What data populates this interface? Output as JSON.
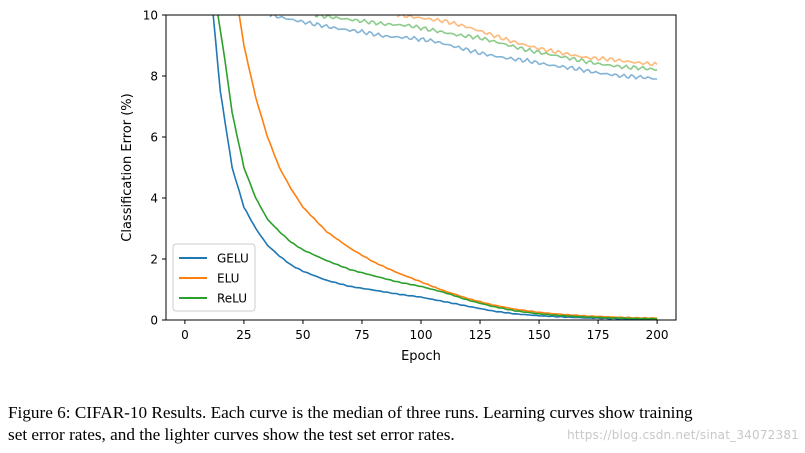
{
  "chart_data": {
    "type": "line",
    "title": "",
    "xlabel": "Epoch",
    "ylabel": "Classification Error (%)",
    "xlim": [
      -8,
      208
    ],
    "ylim": [
      0,
      10
    ],
    "xticks": [
      0,
      25,
      50,
      75,
      100,
      125,
      150,
      175,
      200
    ],
    "yticks": [
      0,
      2,
      4,
      6,
      8,
      10
    ],
    "legend_position": "lower-left",
    "colors": {
      "GELU": "#1f77b4",
      "ELU": "#ff7f0e",
      "ReLU": "#2ca02c"
    },
    "train_series": [
      {
        "name": "GELU",
        "x": [
          12,
          15,
          20,
          25,
          30,
          35,
          40,
          45,
          50,
          60,
          70,
          80,
          90,
          100,
          110,
          120,
          130,
          140,
          150,
          160,
          170,
          180,
          190,
          200
        ],
        "values": [
          10,
          7.5,
          5.0,
          3.7,
          3.0,
          2.45,
          2.1,
          1.8,
          1.6,
          1.3,
          1.1,
          0.98,
          0.85,
          0.75,
          0.6,
          0.45,
          0.3,
          0.2,
          0.14,
          0.1,
          0.07,
          0.05,
          0.04,
          0.03
        ]
      },
      {
        "name": "ELU",
        "x": [
          23,
          25,
          30,
          35,
          40,
          45,
          50,
          55,
          60,
          70,
          80,
          90,
          100,
          110,
          120,
          130,
          140,
          150,
          160,
          170,
          180,
          190,
          200
        ],
        "values": [
          10,
          9.0,
          7.3,
          6.0,
          5.0,
          4.3,
          3.7,
          3.3,
          2.9,
          2.35,
          1.9,
          1.55,
          1.25,
          0.95,
          0.7,
          0.5,
          0.35,
          0.25,
          0.18,
          0.13,
          0.1,
          0.07,
          0.06
        ]
      },
      {
        "name": "ReLU",
        "x": [
          14,
          17,
          20,
          25,
          30,
          35,
          40,
          45,
          50,
          60,
          70,
          80,
          90,
          100,
          110,
          120,
          130,
          140,
          150,
          160,
          170,
          180,
          190,
          200
        ],
        "values": [
          10,
          8.5,
          6.8,
          5.0,
          4.0,
          3.3,
          2.9,
          2.55,
          2.3,
          1.95,
          1.65,
          1.45,
          1.25,
          1.1,
          0.9,
          0.65,
          0.45,
          0.3,
          0.2,
          0.14,
          0.1,
          0.07,
          0.05,
          0.04
        ]
      }
    ],
    "test_series": [
      {
        "name": "GELU (test)",
        "x": [
          36,
          45,
          55,
          65,
          75,
          85,
          95,
          105,
          115,
          125,
          135,
          145,
          155,
          165,
          175,
          185,
          195,
          200
        ],
        "values": [
          10,
          9.85,
          9.7,
          9.55,
          9.45,
          9.3,
          9.25,
          9.15,
          8.95,
          8.75,
          8.6,
          8.5,
          8.35,
          8.25,
          8.1,
          8.0,
          7.95,
          7.9
        ]
      },
      {
        "name": "ELU (test)",
        "x": [
          90,
          100,
          110,
          120,
          130,
          140,
          150,
          160,
          170,
          180,
          190,
          200
        ],
        "values": [
          10,
          9.9,
          9.8,
          9.6,
          9.35,
          9.1,
          8.9,
          8.75,
          8.6,
          8.55,
          8.45,
          8.38
        ]
      },
      {
        "name": "ReLU (test)",
        "x": [
          55,
          65,
          75,
          85,
          95,
          105,
          115,
          125,
          135,
          145,
          155,
          165,
          175,
          185,
          195,
          200
        ],
        "values": [
          10,
          9.9,
          9.8,
          9.7,
          9.65,
          9.5,
          9.35,
          9.25,
          9.05,
          8.85,
          8.7,
          8.55,
          8.4,
          8.3,
          8.25,
          8.2
        ]
      }
    ]
  },
  "caption": {
    "line1": "Figure 6: CIFAR-10 Results. Each curve is the median of three runs. Learning curves show training",
    "line2": "set error rates, and the lighter curves show the test set error rates."
  },
  "watermark": "https://blog.csdn.net/sinat_34072381"
}
